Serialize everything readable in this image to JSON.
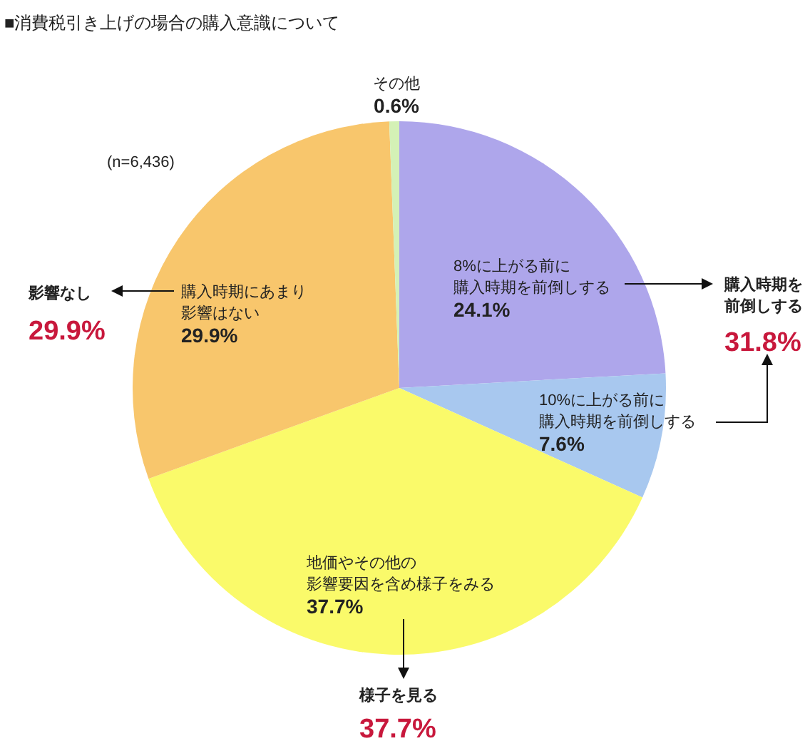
{
  "chart_data": {
    "type": "pie",
    "title": "■消費税引き上げの場合の購入意識について",
    "categories": [
      "8%に上がる前に購入時期を前倒しする",
      "10%に上がる前に購入時期を前倒しする",
      "地価やその他の影響要因を含め様子をみる",
      "購入時期にあまり影響はない",
      "その他"
    ],
    "values": [
      24.1,
      7.6,
      37.7,
      29.9,
      0.6
    ],
    "value_labels": [
      "24.1%",
      "7.6%",
      "37.7%",
      "29.9%",
      "0.6%"
    ],
    "colors": [
      "#aea6eb",
      "#a8c8ef",
      "#fafa6a",
      "#f8c66c",
      "#d4f1b6"
    ],
    "legend": false,
    "annotations": [
      "(n=6,436)",
      "影響なし",
      "29.9%",
      "購入時期を前倒しする",
      "31.8%",
      "様子を見る",
      "37.7%"
    ]
  }
}
